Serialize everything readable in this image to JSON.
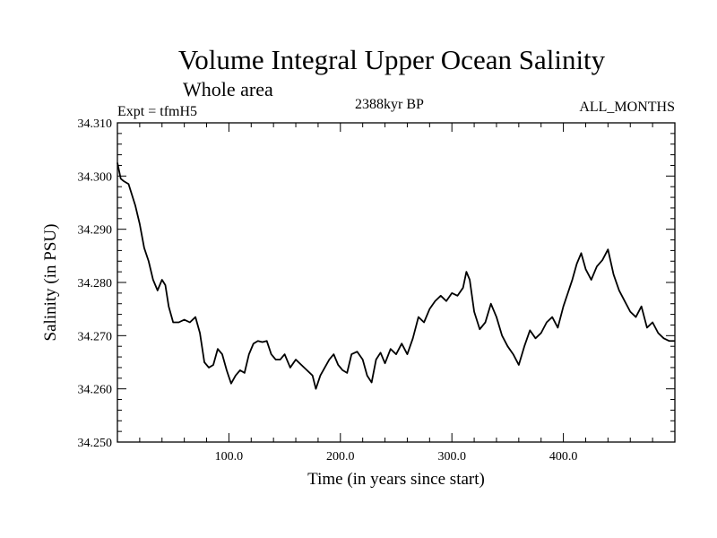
{
  "chart_data": {
    "type": "line",
    "title": "Volume Integral Upper Ocean Salinity",
    "subtitle": "Whole area",
    "experiment": "Expt = tfmH5",
    "period": "2388kyr BP",
    "months": "ALL_MONTHS",
    "xlabel": "Time (in years since start)",
    "ylabel": "Salinity (in PSU)",
    "xlim": [
      0,
      500
    ],
    "ylim": [
      34.25,
      34.31
    ],
    "x_ticks": [
      100,
      200,
      300,
      400
    ],
    "x_tick_labels": [
      "100.0",
      "200.0",
      "300.0",
      "400.0"
    ],
    "y_ticks": [
      34.25,
      34.26,
      34.27,
      34.28,
      34.29,
      34.3,
      34.31
    ],
    "y_tick_labels": [
      "34.250",
      "34.260",
      "34.270",
      "34.280",
      "34.290",
      "34.300",
      "34.310"
    ],
    "series": [
      {
        "name": "Salinity",
        "color": "#000000",
        "x": [
          0,
          3,
          6,
          10,
          13,
          16,
          20,
          24,
          28,
          32,
          36,
          40,
          43,
          46,
          50,
          55,
          60,
          65,
          70,
          74,
          78,
          82,
          86,
          90,
          94,
          98,
          102,
          106,
          110,
          114,
          118,
          122,
          126,
          130,
          134,
          138,
          142,
          146,
          150,
          155,
          160,
          165,
          170,
          175,
          178,
          182,
          186,
          190,
          194,
          198,
          202,
          206,
          210,
          215,
          220,
          224,
          228,
          232,
          236,
          240,
          245,
          250,
          255,
          260,
          265,
          270,
          275,
          280,
          285,
          290,
          295,
          300,
          305,
          310,
          313,
          316,
          320,
          325,
          330,
          335,
          340,
          345,
          350,
          355,
          360,
          365,
          370,
          375,
          380,
          385,
          390,
          395,
          400,
          404,
          408,
          412,
          416,
          420,
          425,
          430,
          435,
          440,
          445,
          450,
          455,
          460,
          465,
          470,
          475,
          480,
          485,
          490,
          495,
          500
        ],
        "values": [
          34.3025,
          34.2995,
          34.299,
          34.2985,
          34.2965,
          34.2945,
          34.291,
          34.2865,
          34.284,
          34.2805,
          34.2785,
          34.2805,
          34.2795,
          34.2755,
          34.2725,
          34.2725,
          34.273,
          34.2725,
          34.2735,
          34.2705,
          34.265,
          34.264,
          34.2645,
          34.2675,
          34.2665,
          34.2635,
          34.261,
          34.2625,
          34.2635,
          34.263,
          34.2665,
          34.2685,
          34.269,
          34.2688,
          34.269,
          34.2665,
          34.2655,
          34.2655,
          34.2665,
          34.264,
          34.2655,
          34.2645,
          34.2635,
          34.2625,
          34.26,
          34.2625,
          34.264,
          34.2655,
          34.2665,
          34.2645,
          34.2635,
          34.263,
          34.2665,
          34.267,
          34.2655,
          34.2625,
          34.2612,
          34.2655,
          34.2668,
          34.2648,
          34.2675,
          34.2665,
          34.2685,
          34.2665,
          34.2695,
          34.2735,
          34.2725,
          34.275,
          34.2765,
          34.2775,
          34.2765,
          34.278,
          34.2775,
          34.279,
          34.282,
          34.2805,
          34.2745,
          34.2712,
          34.2725,
          34.276,
          34.2735,
          34.27,
          34.268,
          34.2665,
          34.2645,
          34.268,
          34.271,
          34.2695,
          34.2705,
          34.2725,
          34.2735,
          34.2715,
          34.2755,
          34.278,
          34.2805,
          34.2835,
          34.2855,
          34.2825,
          34.2805,
          34.283,
          34.2842,
          34.2862,
          34.2815,
          34.2785,
          34.2765,
          34.2745,
          34.2735,
          34.2755,
          34.2715,
          34.2725,
          34.2705,
          34.2695,
          34.269,
          34.269
        ]
      }
    ]
  }
}
